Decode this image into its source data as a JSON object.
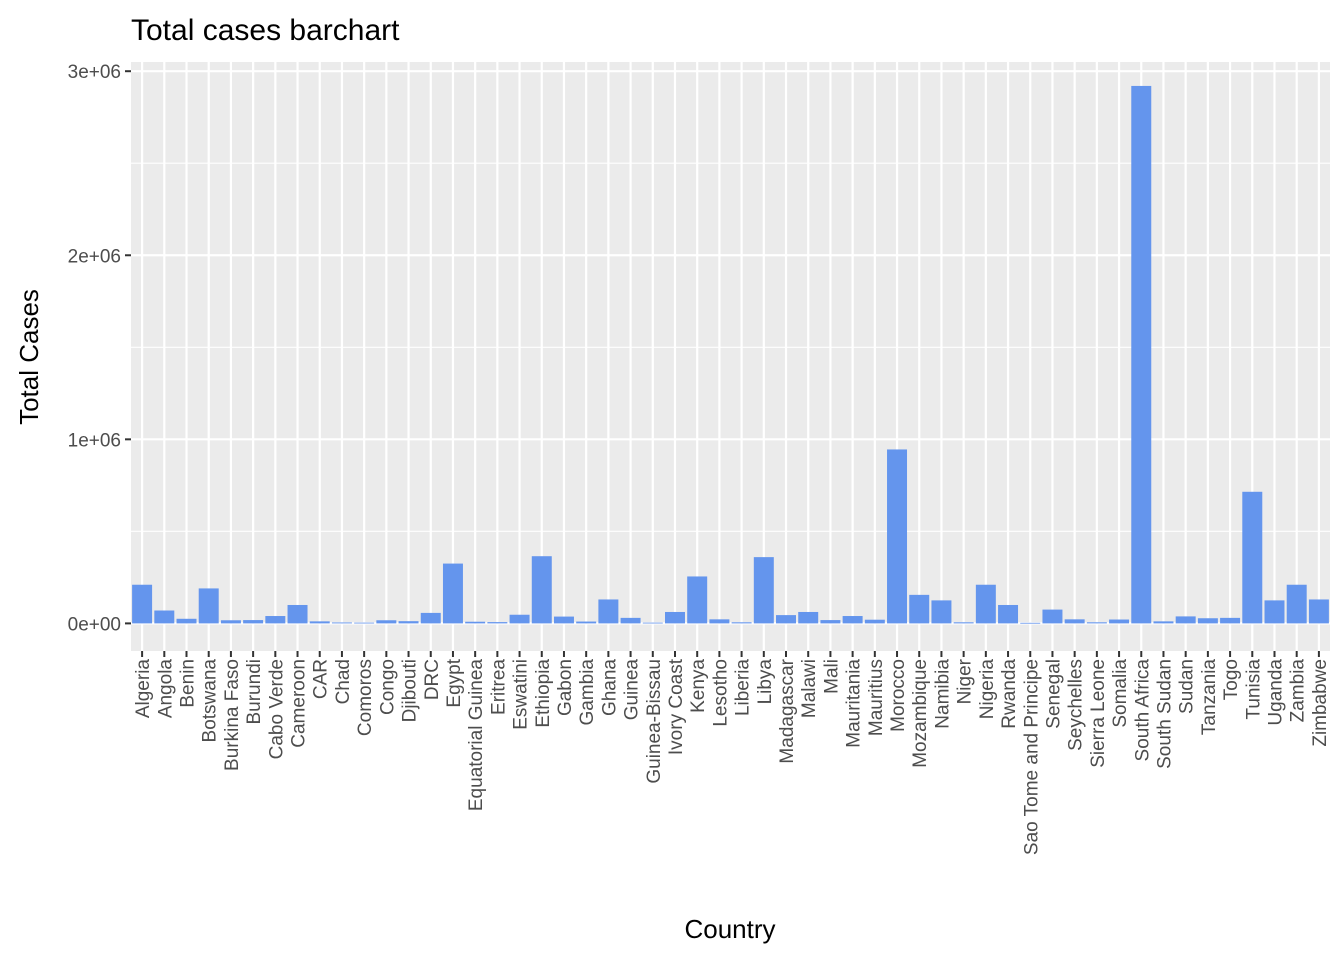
{
  "chart_data": {
    "type": "bar",
    "title": "Total cases barchart",
    "xlabel": "Country",
    "ylabel": "Total Cases",
    "ylim": [
      -150000,
      3050000
    ],
    "yticks": [
      0,
      1000000,
      2000000,
      3000000
    ],
    "ytick_labels": [
      "0e+00",
      "1e+06",
      "2e+06",
      "3e+06"
    ],
    "grid": true,
    "bar_color": "#6495ED",
    "panel_color": "#EBEBEB",
    "categories": [
      "Algeria",
      "Angola",
      "Benin",
      "Botswana",
      "Burkina Faso",
      "Burundi",
      "Cabo Verde",
      "Cameroon",
      "CAR",
      "Chad",
      "Comoros",
      "Congo",
      "Djibouti",
      "DRC",
      "Egypt",
      "Equatorial Guinea",
      "Eritrea",
      "Eswatini",
      "Ethiopia",
      "Gabon",
      "Gambia",
      "Ghana",
      "Guinea",
      "Guinea-Bissau",
      "Ivory Coast",
      "Kenya",
      "Lesotho",
      "Liberia",
      "Libya",
      "Madagascar",
      "Malawi",
      "Mali",
      "Mauritania",
      "Mauritius",
      "Morocco",
      "Mozambique",
      "Namibia",
      "Niger",
      "Nigeria",
      "Rwanda",
      "Sao Tome and Principe",
      "Senegal",
      "Seychelles",
      "Sierra Leone",
      "Somalia",
      "South Africa",
      "South Sudan",
      "Sudan",
      "Tanzania",
      "Togo",
      "Tunisia",
      "Uganda",
      "Zambia",
      "Zimbabwe"
    ],
    "values": [
      210000,
      70000,
      25000,
      190000,
      17000,
      18000,
      40000,
      100000,
      11000,
      5000,
      4000,
      17000,
      12000,
      57000,
      325000,
      9000,
      7000,
      47000,
      365000,
      37000,
      10000,
      130000,
      30000,
      4000,
      62000,
      255000,
      22000,
      6000,
      360000,
      45000,
      62000,
      18000,
      40000,
      20000,
      945000,
      155000,
      125000,
      6000,
      210000,
      100000,
      3000,
      75000,
      22000,
      6000,
      21000,
      2920000,
      11000,
      38000,
      28000,
      30000,
      715000,
      125000,
      210000,
      130000
    ]
  }
}
